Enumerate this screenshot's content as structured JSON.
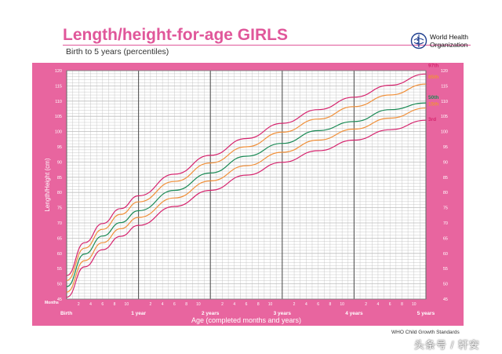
{
  "header": {
    "title": "Length/height-for-age GIRLS",
    "subtitle": "Birth to 5 years (percentiles)",
    "organization_line1": "World Health",
    "organization_line2": "Organization",
    "logo_icon": "who-emblem-icon"
  },
  "footer": {
    "standards_label": "WHO Child Growth Standards",
    "watermark": "头条号 / 轩安"
  },
  "colors": {
    "brand_pink": "#e0579a",
    "frame_pink": "#e8659f",
    "plot_background": "#ffffff",
    "grid_fine": "#bdbdbd",
    "grid_year": "#555555",
    "p97": "#d6246e",
    "p85": "#f0903a",
    "p50": "#1a8a55",
    "p15": "#f0903a",
    "p3": "#d6246e"
  },
  "chart_data": {
    "type": "line",
    "title": "Length/height-for-age GIRLS",
    "subtitle": "Birth to 5 years (percentiles)",
    "xlabel": "Age (completed months and years)",
    "ylabel": "Length/Height (cm)",
    "x_unit": "months",
    "xlim": [
      0,
      60
    ],
    "ylim": [
      45,
      120
    ],
    "y_ticks": [
      45,
      50,
      55,
      60,
      65,
      70,
      75,
      80,
      85,
      90,
      95,
      100,
      105,
      110,
      115,
      120
    ],
    "x_axis_corner_label": "Months",
    "x_month_tick_labels": [
      "2",
      "4",
      "6",
      "8",
      "10"
    ],
    "x_major_labels": [
      {
        "month": 0,
        "label": "Birth"
      },
      {
        "month": 12,
        "label": "1 year"
      },
      {
        "month": 24,
        "label": "2 years"
      },
      {
        "month": 36,
        "label": "3 years"
      },
      {
        "month": 48,
        "label": "4 years"
      },
      {
        "month": 60,
        "label": "5 years"
      }
    ],
    "grid": true,
    "legend": "right-end labels",
    "x": [
      0,
      3,
      6,
      9,
      12,
      18,
      24,
      30,
      36,
      42,
      48,
      54,
      60
    ],
    "series": [
      {
        "name": "97th",
        "values": [
          52.7,
          63.5,
          69.8,
          74.7,
          78.9,
          86.0,
          92.2,
          97.7,
          102.7,
          107.2,
          111.3,
          115.2,
          118.9
        ]
      },
      {
        "name": "85th",
        "values": [
          51.1,
          61.7,
          67.9,
          72.8,
          76.9,
          83.6,
          89.7,
          95.0,
          99.8,
          104.1,
          108.2,
          112.0,
          115.6
        ]
      },
      {
        "name": "50th",
        "values": [
          49.1,
          59.8,
          65.7,
          70.1,
          74.0,
          80.7,
          86.4,
          91.9,
          96.1,
          100.3,
          103.3,
          107.2,
          109.4
        ]
      },
      {
        "name": "15th",
        "values": [
          47.3,
          57.6,
          63.5,
          68.1,
          71.8,
          78.2,
          83.8,
          88.8,
          93.2,
          97.2,
          100.8,
          104.4,
          107.7
        ]
      },
      {
        "name": "3rd",
        "values": [
          45.6,
          55.6,
          61.2,
          65.6,
          69.2,
          75.4,
          80.7,
          85.7,
          89.9,
          93.7,
          97.2,
          100.6,
          103.7
        ]
      }
    ]
  }
}
